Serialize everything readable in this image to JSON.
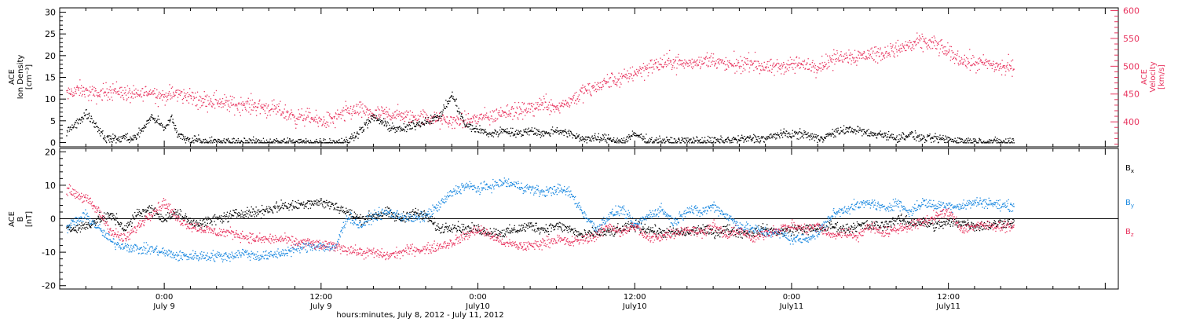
{
  "colors": {
    "black": "#000000",
    "red": "#e8335e",
    "blue": "#1a88e0",
    "axis_red": "#e8335e"
  },
  "top_panel": {
    "ylabel_lines": [
      "ACE",
      "Ion Density",
      "[cm⁻³]"
    ],
    "y2label_lines": [
      "ACE",
      "Velocity",
      "[km/s]"
    ]
  },
  "bottom_panel": {
    "ylabel_lines": [
      "ACE",
      "B",
      "[nT]"
    ],
    "legend": [
      {
        "label": "B",
        "sub": "x",
        "color": "#000000"
      },
      {
        "label": "B",
        "sub": "y",
        "color": "#1a88e0"
      },
      {
        "label": "B",
        "sub": "z",
        "color": "#e8335e"
      }
    ]
  },
  "x_ticks": [
    {
      "hour": 24,
      "line1": "0:00",
      "line2": "July 9"
    },
    {
      "hour": 36,
      "line1": "12:00",
      "line2": "July 9"
    },
    {
      "hour": 48,
      "line1": "0:00",
      "line2": "July10"
    },
    {
      "hour": 60,
      "line1": "12:00",
      "line2": "July10"
    },
    {
      "hour": 72,
      "line1": "0:00",
      "line2": "July11"
    },
    {
      "hour": 84,
      "line1": "12:00",
      "line2": "July11"
    }
  ],
  "xlabel": "hours:minutes, July  8, 2012 - July 11, 2012",
  "chart_data": [
    {
      "type": "scatter",
      "title": "",
      "x_unit": "hours since 2012-07-08 00:00",
      "xlim": [
        16.0,
        97.0
      ],
      "ylabel": "ACE Ion Density [cm⁻³]",
      "ylim": [
        -1,
        31
      ],
      "yticks": [
        0,
        5,
        10,
        15,
        20,
        25,
        30
      ],
      "y2label": "ACE Velocity [km/s]",
      "y2lim": [
        355,
        605
      ],
      "y2ticks": [
        400,
        450,
        500,
        550,
        600
      ],
      "series": [
        {
          "name": "Ion Density",
          "axis": "left",
          "color": "#000000",
          "x": [
            16.5,
            17,
            17.5,
            18,
            18.5,
            19,
            19.5,
            20,
            20.5,
            21,
            21.5,
            22,
            22.5,
            23,
            23.5,
            24,
            24.5,
            25,
            25.5,
            26,
            26.5,
            27,
            28,
            29,
            30,
            31,
            32,
            33,
            34,
            35,
            36,
            37,
            38,
            39,
            40,
            41,
            42,
            43,
            44,
            45,
            46,
            47,
            48,
            49,
            50,
            51,
            52,
            53,
            54,
            55,
            56,
            57,
            58,
            59,
            60,
            61,
            62,
            63,
            64,
            65,
            66,
            67,
            68,
            69,
            70,
            71,
            72,
            73,
            74,
            75,
            76,
            77,
            78,
            79,
            80,
            81,
            82,
            83,
            84,
            85,
            86,
            87,
            88,
            89
          ],
          "y": [
            3,
            4,
            5,
            7,
            5,
            3,
            1,
            1,
            0.8,
            1.5,
            0.8,
            2,
            4,
            6,
            5,
            3,
            6,
            2,
            1,
            0.5,
            1,
            0.3,
            0.3,
            0.2,
            0.2,
            0.2,
            0.2,
            0.2,
            0.2,
            0.2,
            0.2,
            0.2,
            0.3,
            3,
            6,
            4,
            3,
            4,
            5,
            6,
            11,
            4,
            3,
            2,
            3,
            2,
            3,
            2,
            3,
            2,
            1,
            1,
            1,
            0.3,
            2,
            0.5,
            0.5,
            0.3,
            0.5,
            0.5,
            0.4,
            0.6,
            0.8,
            1,
            1,
            2,
            2,
            2,
            1,
            2,
            3,
            3,
            2,
            2,
            1,
            2,
            1,
            1,
            0.8,
            0.5,
            0.3,
            0.3,
            0.2,
            0.2
          ]
        },
        {
          "name": "Velocity",
          "axis": "right",
          "color": "#e8335e",
          "x": [
            16.5,
            17,
            17.5,
            18,
            18.5,
            19,
            19.5,
            20,
            20.5,
            21,
            21.5,
            22,
            22.5,
            23,
            23.5,
            24,
            24.5,
            25,
            25.5,
            26,
            26.5,
            27,
            28,
            29,
            30,
            31,
            32,
            33,
            34,
            35,
            36,
            37,
            38,
            39,
            40,
            41,
            42,
            43,
            44,
            45,
            46,
            47,
            48,
            49,
            50,
            51,
            52,
            53,
            54,
            55,
            56,
            57,
            58,
            59,
            60,
            61,
            62,
            63,
            64,
            65,
            66,
            67,
            68,
            69,
            70,
            71,
            72,
            73,
            74,
            75,
            76,
            77,
            78,
            79,
            80,
            81,
            82,
            83,
            84,
            85,
            86,
            87,
            88,
            89
          ],
          "y": [
            450,
            455,
            458,
            455,
            452,
            450,
            455,
            458,
            455,
            452,
            450,
            448,
            452,
            455,
            450,
            445,
            450,
            452,
            448,
            445,
            442,
            440,
            438,
            432,
            432,
            430,
            425,
            420,
            410,
            408,
            402,
            405,
            420,
            422,
            415,
            415,
            412,
            408,
            408,
            405,
            402,
            402,
            408,
            410,
            420,
            418,
            425,
            435,
            428,
            438,
            455,
            462,
            475,
            478,
            490,
            500,
            505,
            510,
            505,
            510,
            512,
            502,
            505,
            508,
            498,
            500,
            505,
            502,
            500,
            512,
            520,
            518,
            522,
            525,
            532,
            538,
            545,
            540,
            525,
            512,
            505,
            505,
            500,
            498
          ]
        }
      ]
    },
    {
      "type": "scatter",
      "title": "",
      "x_unit": "hours since 2012-07-08 00:00",
      "xlim": [
        16.0,
        97.0
      ],
      "ylabel": "ACE B [nT]",
      "ylim": [
        -21,
        21
      ],
      "yticks": [
        -20,
        -10,
        0,
        10,
        20
      ],
      "series": [
        {
          "name": "Bx",
          "color": "#000000",
          "x": [
            16.5,
            17,
            18,
            19,
            20,
            21,
            22,
            23,
            24,
            25,
            26,
            27,
            28,
            29,
            30,
            31,
            32,
            33,
            34,
            35,
            36,
            37,
            38,
            39,
            40,
            41,
            42,
            43,
            44,
            45,
            46,
            47,
            48,
            49,
            50,
            51,
            52,
            53,
            54,
            55,
            56,
            57,
            58,
            59,
            60,
            61,
            62,
            63,
            64,
            65,
            66,
            67,
            68,
            69,
            70,
            71,
            72,
            73,
            74,
            75,
            76,
            77,
            78,
            79,
            80,
            81,
            82,
            83,
            84,
            85,
            86,
            87,
            88,
            89
          ],
          "y": [
            -2,
            -3,
            -2,
            0,
            1,
            -3,
            2,
            3,
            0,
            2,
            -1,
            -1,
            0,
            1,
            2,
            2,
            3,
            4,
            4,
            5,
            5,
            4,
            2,
            0,
            1,
            2,
            0,
            2,
            1,
            -3,
            -2,
            -3,
            -3,
            -4,
            -4,
            -3,
            -2,
            -3,
            -2,
            -3,
            -5,
            -4,
            -4,
            -3,
            -2,
            -3,
            -4,
            -4,
            -4,
            -3,
            -4,
            -3,
            -4,
            -4,
            -3,
            -4,
            -3,
            -3,
            -3,
            -2,
            -3,
            -2,
            -2,
            -2,
            0,
            -1,
            -1,
            -2,
            -1,
            -1,
            -2,
            -2,
            -1,
            -1
          ]
        },
        {
          "name": "By",
          "color": "#1a88e0",
          "x": [
            16.5,
            17,
            18,
            19,
            20,
            21,
            22,
            23,
            24,
            25,
            26,
            27,
            28,
            29,
            30,
            31,
            32,
            33,
            34,
            35,
            36,
            37,
            38,
            39,
            40,
            41,
            42,
            43,
            44,
            45,
            46,
            47,
            48,
            49,
            50,
            51,
            52,
            53,
            54,
            55,
            56,
            57,
            58,
            59,
            60,
            61,
            62,
            63,
            64,
            65,
            66,
            67,
            68,
            69,
            70,
            71,
            72,
            73,
            74,
            75,
            76,
            77,
            78,
            79,
            80,
            81,
            82,
            83,
            84,
            85,
            86,
            87,
            88,
            89
          ],
          "y": [
            -3,
            -1,
            1,
            -3,
            -7,
            -8,
            -9,
            -9,
            -10,
            -11,
            -11,
            -11,
            -11,
            -11,
            -10,
            -11,
            -11,
            -10,
            -9,
            -8,
            -8,
            -9,
            1,
            -2,
            1,
            2,
            1,
            0,
            1,
            4,
            8,
            10,
            9,
            10,
            11,
            10,
            9,
            8,
            9,
            8,
            2,
            -3,
            1,
            3,
            -2,
            1,
            3,
            -1,
            3,
            2,
            4,
            1,
            -2,
            -3,
            -4,
            -4,
            -6,
            -6,
            -4,
            1,
            3,
            4,
            5,
            3,
            5,
            2,
            5,
            4,
            4,
            4,
            5,
            5,
            4,
            4
          ]
        },
        {
          "name": "Bz",
          "color": "#e8335e",
          "x": [
            16.5,
            17,
            18,
            19,
            20,
            21,
            22,
            23,
            24,
            25,
            26,
            27,
            28,
            29,
            30,
            31,
            32,
            33,
            34,
            35,
            36,
            37,
            38,
            39,
            40,
            41,
            42,
            43,
            44,
            45,
            46,
            47,
            48,
            49,
            50,
            51,
            52,
            53,
            54,
            55,
            56,
            57,
            58,
            59,
            60,
            61,
            62,
            63,
            64,
            65,
            66,
            67,
            68,
            69,
            70,
            71,
            72,
            73,
            74,
            75,
            76,
            77,
            78,
            79,
            80,
            81,
            82,
            83,
            84,
            85,
            86,
            87,
            88,
            89
          ],
          "y": [
            9,
            8,
            6,
            2,
            -4,
            -6,
            -2,
            2,
            5,
            0,
            -2,
            -3,
            -4,
            -4,
            -5,
            -6,
            -6,
            -6,
            -7,
            -7,
            -8,
            -8,
            -9,
            -10,
            -10,
            -11,
            -10,
            -9,
            -9,
            -8,
            -7,
            -5,
            -3,
            -5,
            -7,
            -8,
            -8,
            -7,
            -6,
            -7,
            -6,
            -5,
            -2,
            -4,
            -2,
            -6,
            -5,
            -4,
            -3,
            -4,
            -2,
            -5,
            -3,
            -6,
            -4,
            -3,
            -2,
            -3,
            -2,
            -5,
            -4,
            -5,
            -2,
            -4,
            -3,
            -2,
            -1,
            1,
            2,
            -3,
            -2,
            -2,
            -2,
            -2
          ]
        }
      ]
    }
  ]
}
